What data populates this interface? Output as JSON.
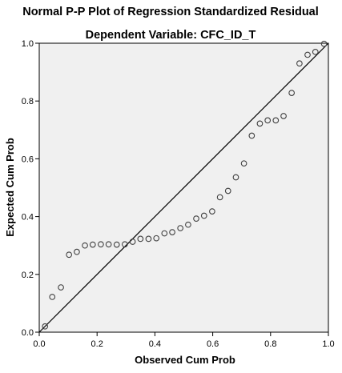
{
  "chart_data": {
    "type": "scatter",
    "title": "Normal P-P Plot of Regression Standardized Residual",
    "subtitle": "Dependent Variable: CFC_ID_T",
    "xlabel": "Observed Cum Prob",
    "ylabel": "Expected Cum Prob",
    "xlim": [
      0,
      1
    ],
    "ylim": [
      0,
      1
    ],
    "x_ticks": [
      "0.0",
      "0.2",
      "0.4",
      "0.6",
      "0.8",
      "1.0"
    ],
    "y_ticks": [
      "0.0",
      "0.2",
      "0.4",
      "0.6",
      "0.8",
      "1.0"
    ],
    "grid": false,
    "reference_line": {
      "from": [
        0,
        0
      ],
      "to": [
        1,
        1
      ]
    },
    "points": [
      {
        "x": 0.02,
        "y": 0.02
      },
      {
        "x": 0.045,
        "y": 0.122
      },
      {
        "x": 0.075,
        "y": 0.155
      },
      {
        "x": 0.103,
        "y": 0.268
      },
      {
        "x": 0.13,
        "y": 0.278
      },
      {
        "x": 0.158,
        "y": 0.3
      },
      {
        "x": 0.185,
        "y": 0.303
      },
      {
        "x": 0.213,
        "y": 0.304
      },
      {
        "x": 0.24,
        "y": 0.304
      },
      {
        "x": 0.268,
        "y": 0.303
      },
      {
        "x": 0.296,
        "y": 0.304
      },
      {
        "x": 0.323,
        "y": 0.313
      },
      {
        "x": 0.35,
        "y": 0.323
      },
      {
        "x": 0.378,
        "y": 0.323
      },
      {
        "x": 0.405,
        "y": 0.325
      },
      {
        "x": 0.433,
        "y": 0.342
      },
      {
        "x": 0.46,
        "y": 0.346
      },
      {
        "x": 0.488,
        "y": 0.36
      },
      {
        "x": 0.515,
        "y": 0.372
      },
      {
        "x": 0.543,
        "y": 0.393
      },
      {
        "x": 0.57,
        "y": 0.403
      },
      {
        "x": 0.598,
        "y": 0.418
      },
      {
        "x": 0.625,
        "y": 0.467
      },
      {
        "x": 0.653,
        "y": 0.489
      },
      {
        "x": 0.68,
        "y": 0.536
      },
      {
        "x": 0.708,
        "y": 0.584
      },
      {
        "x": 0.735,
        "y": 0.68
      },
      {
        "x": 0.763,
        "y": 0.722
      },
      {
        "x": 0.79,
        "y": 0.733
      },
      {
        "x": 0.818,
        "y": 0.733
      },
      {
        "x": 0.845,
        "y": 0.748
      },
      {
        "x": 0.873,
        "y": 0.828
      },
      {
        "x": 0.9,
        "y": 0.93
      },
      {
        "x": 0.928,
        "y": 0.96
      },
      {
        "x": 0.955,
        "y": 0.97
      },
      {
        "x": 0.985,
        "y": 0.998
      }
    ]
  },
  "colors": {
    "plot_background": "#f0f0f0",
    "marker_stroke": "#404040",
    "axis": "#000000"
  }
}
